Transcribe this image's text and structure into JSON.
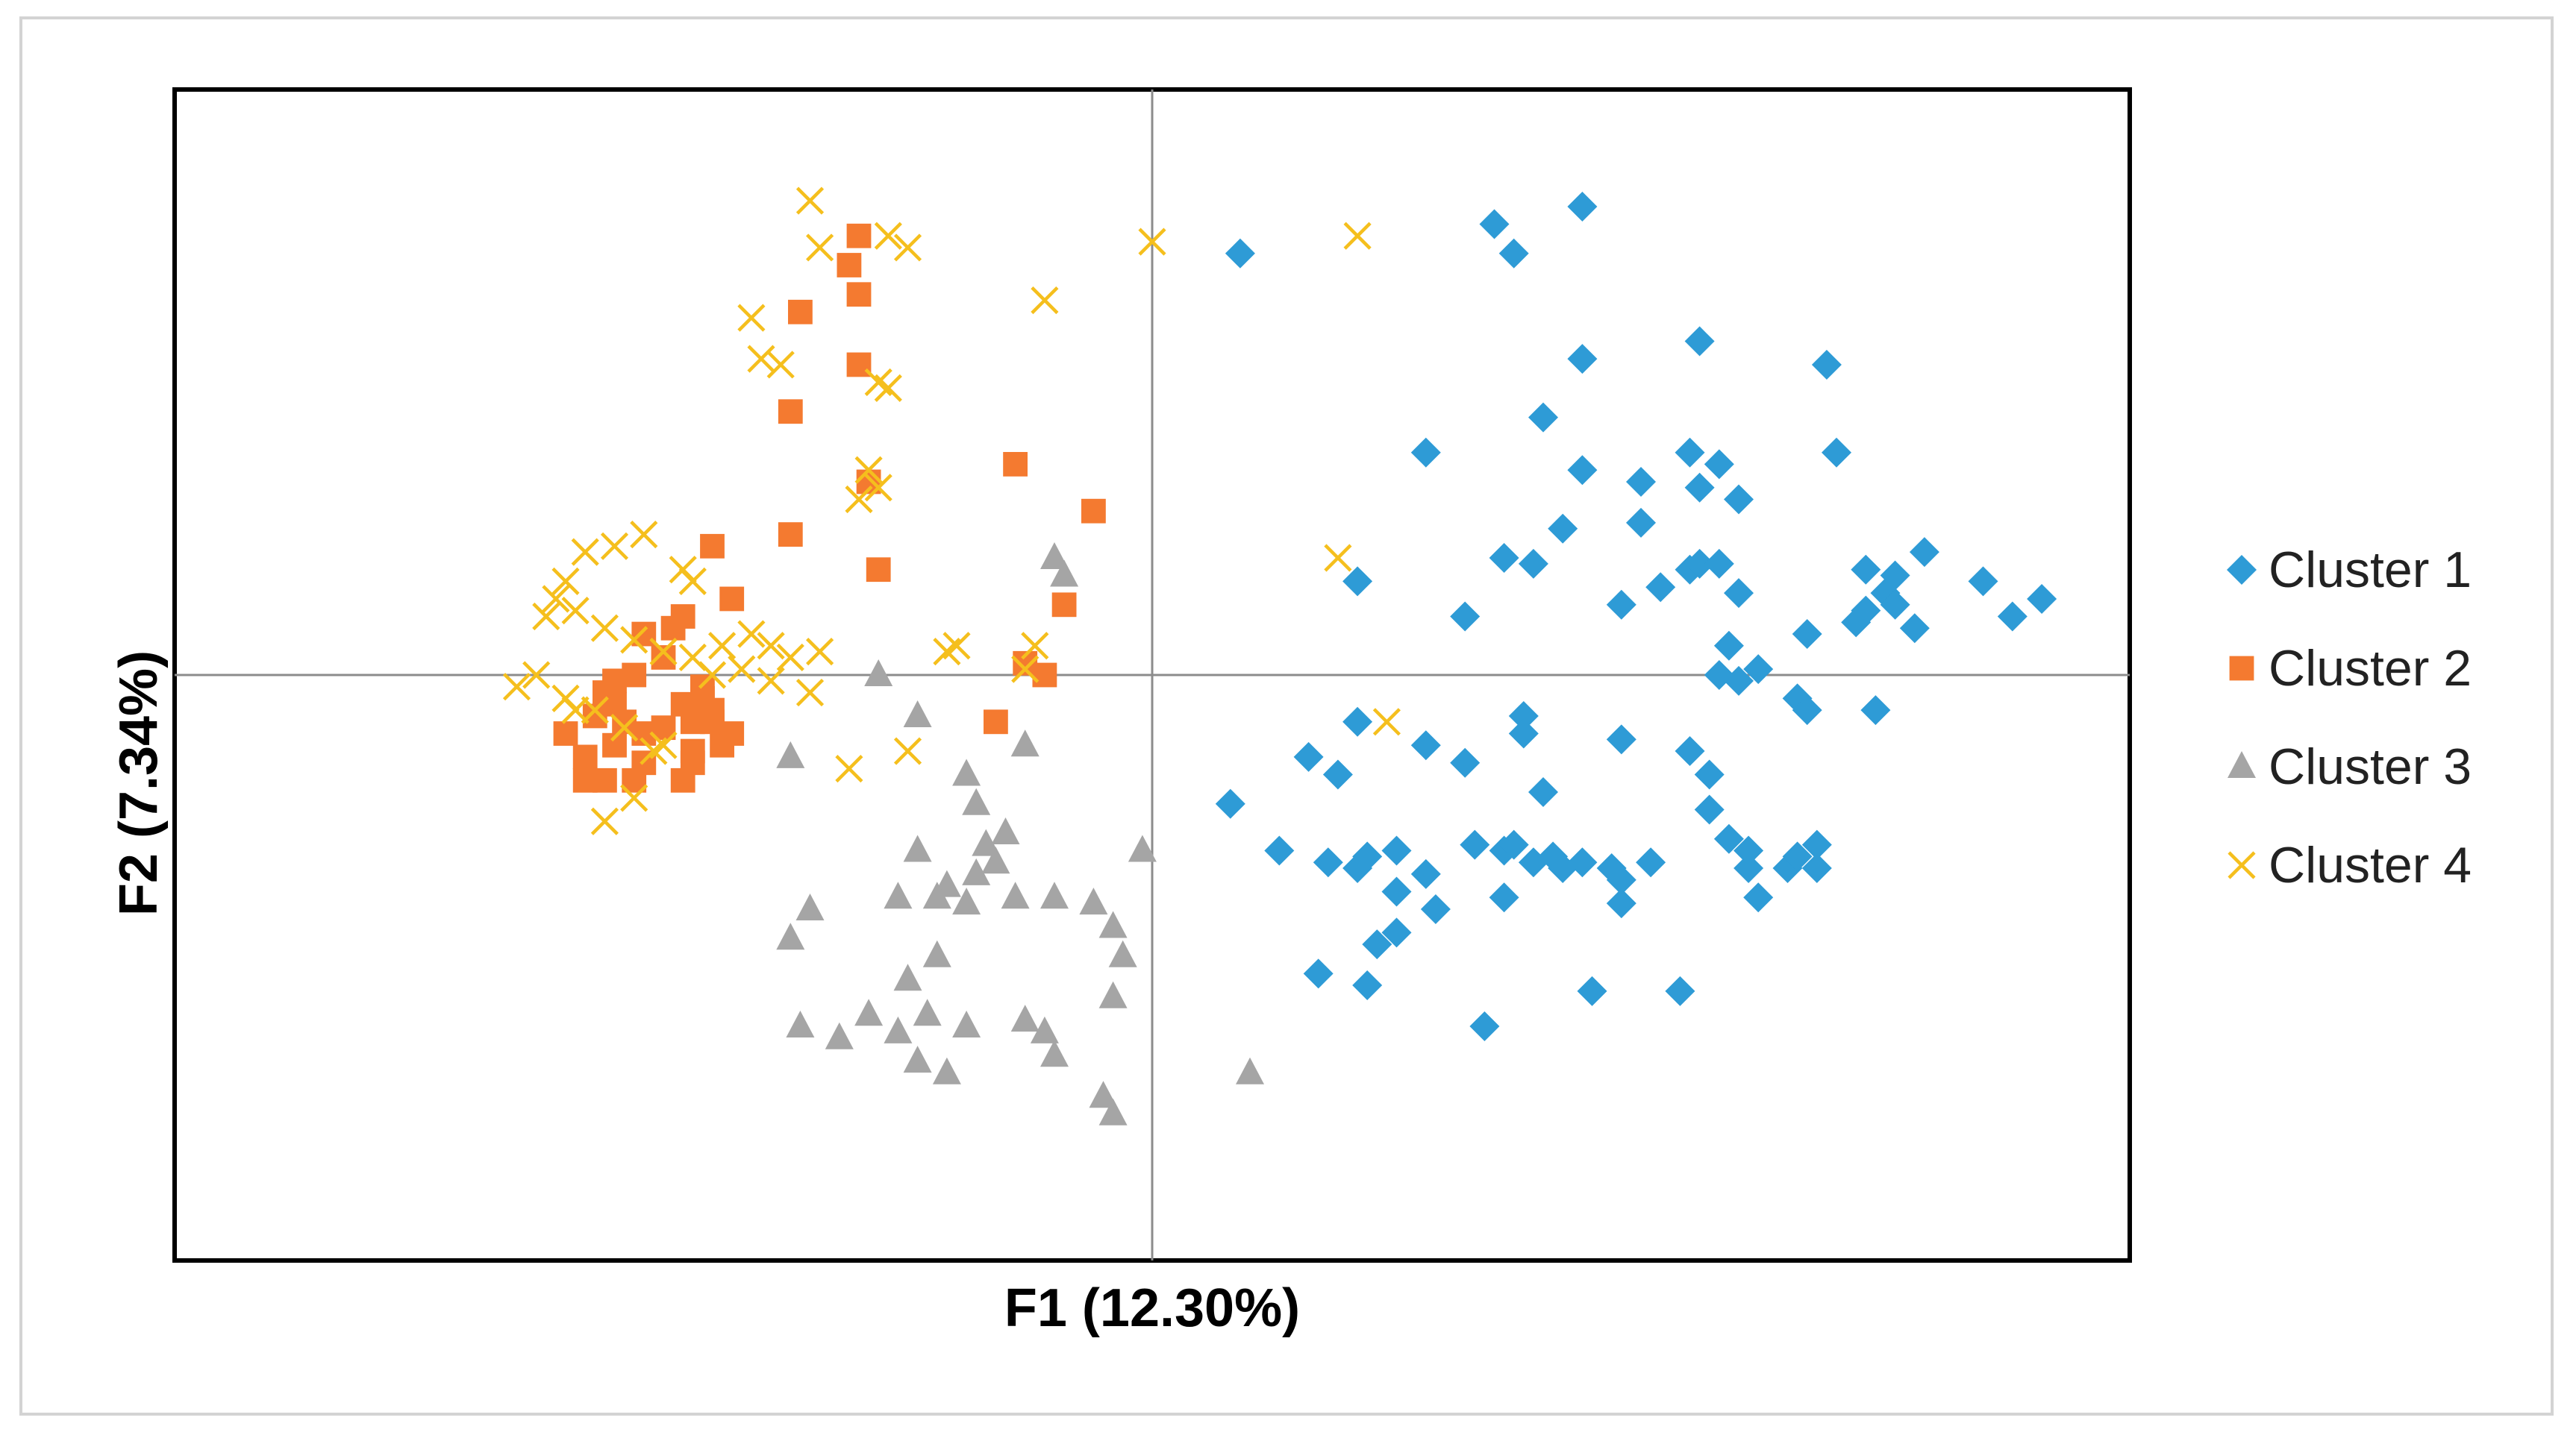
{
  "chart_data": {
    "type": "scatter",
    "title": "",
    "xlabel": "F1 (12.30%)",
    "ylabel": "F2 (7.34%)",
    "xlim": [
      -1,
      1
    ],
    "ylim": [
      -1,
      1
    ],
    "grid": false,
    "axis_lines_at_zero": true,
    "show_tick_labels": false,
    "legend_position": "right",
    "series": [
      {
        "name": "Cluster 1",
        "marker": "diamond",
        "color": "#2E9BD6",
        "points": [
          [
            0.09,
            0.72
          ],
          [
            0.35,
            0.77
          ],
          [
            0.37,
            0.72
          ],
          [
            0.44,
            0.8
          ],
          [
            0.44,
            0.54
          ],
          [
            0.56,
            0.57
          ],
          [
            0.69,
            0.53
          ],
          [
            0.4,
            0.44
          ],
          [
            0.28,
            0.38
          ],
          [
            0.44,
            0.35
          ],
          [
            0.5,
            0.33
          ],
          [
            0.56,
            0.32
          ],
          [
            0.55,
            0.38
          ],
          [
            0.58,
            0.36
          ],
          [
            0.7,
            0.38
          ],
          [
            0.42,
            0.25
          ],
          [
            0.5,
            0.26
          ],
          [
            0.6,
            0.3
          ],
          [
            0.55,
            0.18
          ],
          [
            0.56,
            0.19
          ],
          [
            0.58,
            0.19
          ],
          [
            0.36,
            0.2
          ],
          [
            0.39,
            0.19
          ],
          [
            0.21,
            0.16
          ],
          [
            0.32,
            0.1
          ],
          [
            0.48,
            0.12
          ],
          [
            0.52,
            0.15
          ],
          [
            0.6,
            0.14
          ],
          [
            0.79,
            0.21
          ],
          [
            0.73,
            0.18
          ],
          [
            0.76,
            0.17
          ],
          [
            0.75,
            0.14
          ],
          [
            0.76,
            0.12
          ],
          [
            0.85,
            0.16
          ],
          [
            0.91,
            0.13
          ],
          [
            0.88,
            0.1
          ],
          [
            0.72,
            0.09
          ],
          [
            0.73,
            0.11
          ],
          [
            0.78,
            0.08
          ],
          [
            0.67,
            0.07
          ],
          [
            0.59,
            0.05
          ],
          [
            0.62,
            0.01
          ],
          [
            0.58,
            0.0
          ],
          [
            0.6,
            -0.01
          ],
          [
            0.66,
            -0.04
          ],
          [
            0.67,
            -0.06
          ],
          [
            0.74,
            -0.06
          ],
          [
            0.21,
            -0.08
          ],
          [
            0.38,
            -0.07
          ],
          [
            0.38,
            -0.1
          ],
          [
            0.16,
            -0.14
          ],
          [
            0.28,
            -0.12
          ],
          [
            0.32,
            -0.15
          ],
          [
            0.48,
            -0.11
          ],
          [
            0.55,
            -0.13
          ],
          [
            0.57,
            -0.17
          ],
          [
            0.4,
            -0.2
          ],
          [
            0.19,
            -0.17
          ],
          [
            0.57,
            -0.23
          ],
          [
            0.08,
            -0.22
          ],
          [
            0.13,
            -0.3
          ],
          [
            0.18,
            -0.32
          ],
          [
            0.22,
            -0.31
          ],
          [
            0.25,
            -0.3
          ],
          [
            0.28,
            -0.34
          ],
          [
            0.33,
            -0.29
          ],
          [
            0.36,
            -0.3
          ],
          [
            0.37,
            -0.29
          ],
          [
            0.39,
            -0.32
          ],
          [
            0.41,
            -0.31
          ],
          [
            0.42,
            -0.33
          ],
          [
            0.44,
            -0.32
          ],
          [
            0.47,
            -0.33
          ],
          [
            0.48,
            -0.35
          ],
          [
            0.51,
            -0.32
          ],
          [
            0.59,
            -0.28
          ],
          [
            0.61,
            -0.3
          ],
          [
            0.61,
            -0.33
          ],
          [
            0.65,
            -0.33
          ],
          [
            0.66,
            -0.31
          ],
          [
            0.68,
            -0.33
          ],
          [
            0.68,
            -0.29
          ],
          [
            0.21,
            -0.33
          ],
          [
            0.25,
            -0.37
          ],
          [
            0.29,
            -0.4
          ],
          [
            0.36,
            -0.38
          ],
          [
            0.48,
            -0.39
          ],
          [
            0.62,
            -0.38
          ],
          [
            0.23,
            -0.46
          ],
          [
            0.25,
            -0.44
          ],
          [
            0.17,
            -0.51
          ],
          [
            0.22,
            -0.53
          ],
          [
            0.34,
            -0.6
          ],
          [
            0.45,
            -0.54
          ],
          [
            0.54,
            -0.54
          ]
        ]
      },
      {
        "name": "Cluster 2",
        "marker": "square",
        "color": "#F47A30",
        "points": [
          [
            -0.3,
            0.75
          ],
          [
            -0.31,
            0.7
          ],
          [
            -0.3,
            0.65
          ],
          [
            -0.36,
            0.62
          ],
          [
            -0.3,
            0.53
          ],
          [
            -0.37,
            0.45
          ],
          [
            -0.29,
            0.33
          ],
          [
            -0.14,
            0.36
          ],
          [
            -0.06,
            0.28
          ],
          [
            -0.37,
            0.24
          ],
          [
            -0.45,
            0.22
          ],
          [
            -0.28,
            0.18
          ],
          [
            -0.43,
            0.13
          ],
          [
            -0.48,
            0.1
          ],
          [
            -0.49,
            0.08
          ],
          [
            -0.52,
            0.07
          ],
          [
            -0.5,
            0.03
          ],
          [
            -0.53,
            0.0
          ],
          [
            -0.55,
            -0.01
          ],
          [
            -0.56,
            -0.03
          ],
          [
            -0.46,
            -0.02
          ],
          [
            -0.48,
            -0.05
          ],
          [
            -0.45,
            -0.06
          ],
          [
            -0.47,
            -0.08
          ],
          [
            -0.5,
            -0.09
          ],
          [
            -0.52,
            -0.1
          ],
          [
            -0.55,
            -0.12
          ],
          [
            -0.58,
            -0.14
          ],
          [
            -0.52,
            -0.15
          ],
          [
            -0.47,
            -0.13
          ],
          [
            -0.44,
            -0.12
          ],
          [
            -0.43,
            -0.1
          ],
          [
            -0.45,
            -0.08
          ],
          [
            -0.46,
            -0.04
          ],
          [
            -0.47,
            -0.15
          ],
          [
            -0.48,
            -0.18
          ],
          [
            -0.53,
            -0.18
          ],
          [
            -0.56,
            -0.18
          ],
          [
            -0.58,
            -0.18
          ],
          [
            -0.6,
            -0.1
          ],
          [
            -0.55,
            -0.05
          ],
          [
            -0.54,
            -0.08
          ],
          [
            -0.57,
            -0.07
          ],
          [
            -0.13,
            0.02
          ],
          [
            -0.11,
            0.0
          ],
          [
            -0.16,
            -0.08
          ],
          [
            -0.09,
            0.12
          ]
        ]
      },
      {
        "name": "Cluster 3",
        "marker": "triangle",
        "color": "#A5A5A5",
        "points": [
          [
            -0.1,
            0.2
          ],
          [
            -0.09,
            0.17
          ],
          [
            -0.28,
            0.0
          ],
          [
            -0.24,
            -0.07
          ],
          [
            -0.13,
            -0.12
          ],
          [
            -0.37,
            -0.14
          ],
          [
            -0.19,
            -0.17
          ],
          [
            -0.18,
            -0.22
          ],
          [
            -0.15,
            -0.27
          ],
          [
            -0.17,
            -0.29
          ],
          [
            -0.24,
            -0.3
          ],
          [
            -0.16,
            -0.32
          ],
          [
            -0.18,
            -0.34
          ],
          [
            -0.21,
            -0.36
          ],
          [
            -0.22,
            -0.38
          ],
          [
            -0.19,
            -0.39
          ],
          [
            -0.14,
            -0.38
          ],
          [
            -0.1,
            -0.38
          ],
          [
            -0.06,
            -0.39
          ],
          [
            -0.04,
            -0.43
          ],
          [
            -0.01,
            -0.3
          ],
          [
            -0.35,
            -0.4
          ],
          [
            -0.37,
            -0.45
          ],
          [
            -0.26,
            -0.38
          ],
          [
            -0.22,
            -0.48
          ],
          [
            -0.25,
            -0.52
          ],
          [
            -0.29,
            -0.58
          ],
          [
            -0.26,
            -0.61
          ],
          [
            -0.23,
            -0.58
          ],
          [
            -0.19,
            -0.6
          ],
          [
            -0.24,
            -0.66
          ],
          [
            -0.13,
            -0.59
          ],
          [
            -0.03,
            -0.48
          ],
          [
            -0.04,
            -0.55
          ],
          [
            -0.11,
            -0.61
          ],
          [
            -0.1,
            -0.65
          ],
          [
            -0.32,
            -0.62
          ],
          [
            -0.36,
            -0.6
          ],
          [
            -0.05,
            -0.72
          ],
          [
            -0.04,
            -0.75
          ],
          [
            0.1,
            -0.68
          ],
          [
            -0.21,
            -0.68
          ]
        ]
      },
      {
        "name": "Cluster 4",
        "marker": "x",
        "color": "#F5BF1D",
        "points": [
          [
            -0.35,
            0.81
          ],
          [
            -0.34,
            0.73
          ],
          [
            -0.27,
            0.75
          ],
          [
            -0.25,
            0.73
          ],
          [
            -0.11,
            0.64
          ],
          [
            0.0,
            0.74
          ],
          [
            0.21,
            0.75
          ],
          [
            -0.41,
            0.61
          ],
          [
            -0.4,
            0.54
          ],
          [
            -0.38,
            0.53
          ],
          [
            -0.28,
            0.5
          ],
          [
            -0.27,
            0.49
          ],
          [
            -0.29,
            0.35
          ],
          [
            -0.28,
            0.32
          ],
          [
            -0.3,
            0.3
          ],
          [
            -0.58,
            0.21
          ],
          [
            -0.55,
            0.22
          ],
          [
            -0.52,
            0.24
          ],
          [
            -0.48,
            0.18
          ],
          [
            -0.47,
            0.16
          ],
          [
            -0.6,
            0.16
          ],
          [
            -0.61,
            0.13
          ],
          [
            -0.59,
            0.11
          ],
          [
            -0.62,
            0.1
          ],
          [
            -0.56,
            0.08
          ],
          [
            -0.53,
            0.06
          ],
          [
            -0.5,
            0.04
          ],
          [
            -0.47,
            0.03
          ],
          [
            -0.44,
            0.05
          ],
          [
            -0.41,
            0.07
          ],
          [
            -0.39,
            0.05
          ],
          [
            -0.37,
            0.03
          ],
          [
            -0.34,
            0.04
          ],
          [
            -0.2,
            0.05
          ],
          [
            -0.21,
            0.04
          ],
          [
            -0.12,
            0.05
          ],
          [
            -0.63,
            0.0
          ],
          [
            -0.65,
            -0.02
          ],
          [
            -0.6,
            -0.04
          ],
          [
            -0.57,
            -0.06
          ],
          [
            -0.54,
            -0.09
          ],
          [
            -0.51,
            -0.13
          ],
          [
            -0.45,
            0.0
          ],
          [
            -0.42,
            0.01
          ],
          [
            -0.39,
            -0.01
          ],
          [
            -0.35,
            -0.03
          ],
          [
            -0.31,
            -0.16
          ],
          [
            -0.25,
            -0.13
          ],
          [
            -0.56,
            -0.25
          ],
          [
            -0.53,
            -0.21
          ],
          [
            -0.5,
            -0.12
          ],
          [
            -0.13,
            0.01
          ],
          [
            0.19,
            0.2
          ],
          [
            0.24,
            -0.08
          ],
          [
            -0.59,
            -0.06
          ]
        ]
      }
    ]
  }
}
